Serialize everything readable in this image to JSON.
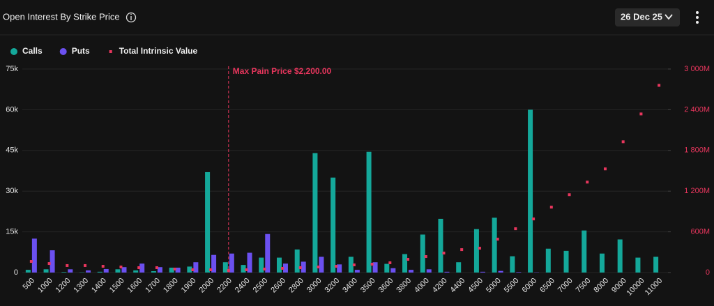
{
  "header": {
    "title": "Open Interest By Strike Price",
    "date": "26 Dec 25"
  },
  "chart_data": {
    "type": "bar",
    "categories": [
      "500",
      "1000",
      "1200",
      "1300",
      "1400",
      "1500",
      "1600",
      "1700",
      "1800",
      "1900",
      "2000",
      "2200",
      "2400",
      "2500",
      "2600",
      "2800",
      "3000",
      "3200",
      "3400",
      "3500",
      "3600",
      "3800",
      "4000",
      "4200",
      "4400",
      "4500",
      "5000",
      "5500",
      "6000",
      "6500",
      "7000",
      "7500",
      "8000",
      "9000",
      "10000",
      "11000"
    ],
    "series": [
      {
        "name": "Calls",
        "color": "#14a89a",
        "values": [
          1000,
          1200,
          200,
          100,
          300,
          1200,
          800,
          500,
          1800,
          2200,
          37000,
          3800,
          2800,
          5500,
          5500,
          8500,
          44000,
          35000,
          5800,
          44500,
          3200,
          6800,
          14000,
          19800,
          3800,
          16000,
          20200,
          6000,
          60000,
          8800,
          8000,
          15500,
          7000,
          12200,
          5500,
          5800
        ]
      },
      {
        "name": "Puts",
        "color": "#6b50f0",
        "values": [
          12500,
          8200,
          1200,
          800,
          1300,
          2000,
          3300,
          2000,
          1800,
          3800,
          6500,
          7000,
          7300,
          14200,
          3300,
          4000,
          5800,
          3000,
          1000,
          3800,
          1600,
          1000,
          1200,
          300,
          0,
          300,
          600,
          200,
          100,
          0,
          0,
          0,
          0,
          0,
          0,
          0
        ]
      },
      {
        "name": "Total Intrinsic Value",
        "color": "#e8365d",
        "axis": "y2",
        "values": [
          164,
          133,
          103,
          103,
          92,
          82,
          72,
          72,
          51,
          41,
          41,
          31,
          41,
          51,
          62,
          72,
          82,
          92,
          113,
          123,
          144,
          195,
          236,
          287,
          338,
          359,
          492,
          646,
          790,
          964,
          1148,
          1333,
          1528,
          1928,
          2338,
          2759
        ]
      }
    ],
    "ylim": [
      0,
      75000
    ],
    "yticks": [
      0,
      {
        "value": 15000,
        "label": "15k"
      },
      {
        "value": 30000,
        "label": "30k"
      },
      {
        "value": 45000,
        "label": "45k"
      },
      {
        "value": 60000,
        "label": "60k"
      },
      {
        "value": 75000,
        "label": "75k"
      }
    ],
    "y2lim": [
      0,
      3000
    ],
    "y2ticks": [
      0,
      {
        "value": 600,
        "label": "600M"
      },
      {
        "value": 1200,
        "label": "1 200M"
      },
      {
        "value": 1800,
        "label": "1 800M"
      },
      {
        "value": 2400,
        "label": "2 400M"
      },
      {
        "value": 3000,
        "label": "3 000M"
      }
    ],
    "annotation": {
      "text": "Max Pain Price $2,200.00",
      "category": "2200"
    }
  }
}
